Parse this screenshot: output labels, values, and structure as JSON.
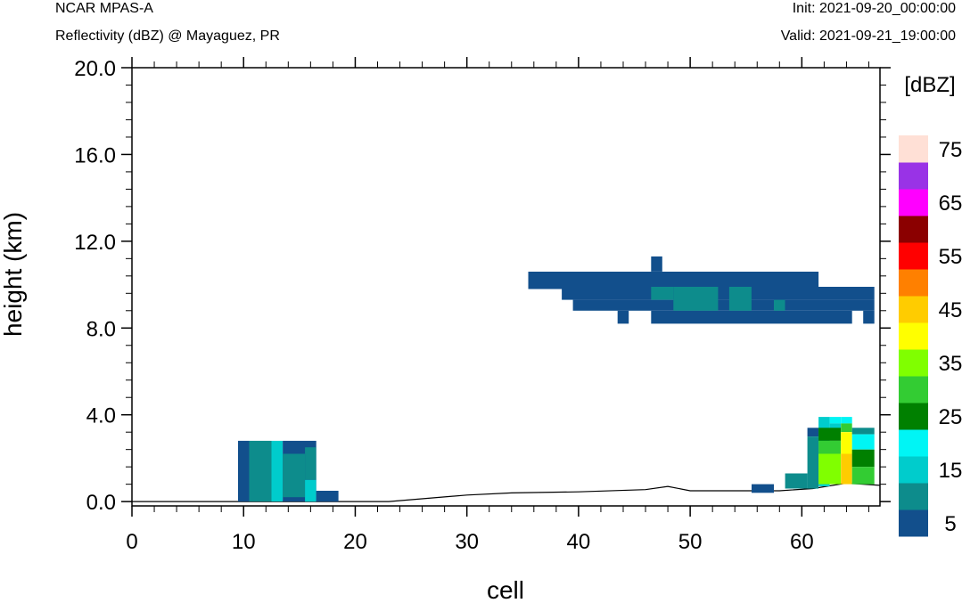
{
  "header": {
    "left_title": "NCAR MPAS-A",
    "left_subtitle": "Reflectivity (dBZ) @ Mayaguez, PR",
    "init": "Init: 2021-09-20_00:00:00",
    "valid": "Valid: 2021-09-21_19:00:00"
  },
  "chart_data": {
    "type": "heatmap",
    "title": "Reflectivity (dBZ) @ Mayaguez, PR",
    "xlabel": "cell",
    "ylabel": "height (km)",
    "xlim": [
      0,
      67
    ],
    "ylim": [
      -0.2,
      20.0
    ],
    "x_ticks": [
      0,
      10,
      20,
      30,
      40,
      50,
      60
    ],
    "x_tick_labels": [
      "0",
      "10",
      "20",
      "30",
      "40",
      "50",
      "60"
    ],
    "y_ticks": [
      0,
      4,
      8,
      12,
      16,
      20
    ],
    "y_tick_labels": [
      "0.0",
      "4.0",
      "8.0",
      "12.0",
      "16.0",
      "20.0"
    ],
    "colorbar": {
      "label": "[dBZ]",
      "levels": [
        5,
        10,
        15,
        20,
        25,
        30,
        35,
        40,
        45,
        50,
        55,
        60,
        65,
        70,
        75
      ],
      "tick_labels": [
        "5",
        "15",
        "25",
        "35",
        "45",
        "55",
        "65",
        "75"
      ],
      "colors": [
        "#124f8c",
        "#0d8c8c",
        "#00cccc",
        "#00f5f5",
        "#008000",
        "#33cc33",
        "#80ff00",
        "#ffff00",
        "#ffcc00",
        "#ff8000",
        "#ff0000",
        "#8b0000",
        "#ff00ff",
        "#9933e6",
        "#ffe0d6"
      ]
    },
    "terrain": [
      [
        0,
        0.0
      ],
      [
        23,
        0.0
      ],
      [
        30,
        0.3
      ],
      [
        34,
        0.4
      ],
      [
        40,
        0.45
      ],
      [
        46,
        0.55
      ],
      [
        48,
        0.7
      ],
      [
        50,
        0.5
      ],
      [
        55,
        0.5
      ],
      [
        58,
        0.5
      ],
      [
        61,
        0.6
      ],
      [
        64,
        0.85
      ],
      [
        67,
        0.75
      ]
    ],
    "cells": [
      {
        "x0": 9.5,
        "x1": 10.5,
        "y0": 0.0,
        "y1": 2.8,
        "dbz": 5
      },
      {
        "x0": 10.5,
        "x1": 12.5,
        "y0": 0.0,
        "y1": 2.8,
        "dbz": 10
      },
      {
        "x0": 12.5,
        "x1": 13.5,
        "y0": 0.0,
        "y1": 2.8,
        "dbz": 15
      },
      {
        "x0": 13.5,
        "x1": 16.5,
        "y0": 0.0,
        "y1": 2.8,
        "dbz": 5
      },
      {
        "x0": 13.5,
        "x1": 15.5,
        "y0": 0.2,
        "y1": 2.2,
        "dbz": 10
      },
      {
        "x0": 15.5,
        "x1": 16.5,
        "y0": 1.0,
        "y1": 2.5,
        "dbz": 10
      },
      {
        "x0": 15.5,
        "x1": 16.5,
        "y0": 0.0,
        "y1": 1.0,
        "dbz": 15
      },
      {
        "x0": 16.5,
        "x1": 18.5,
        "y0": 0.0,
        "y1": 0.5,
        "dbz": 5
      },
      {
        "x0": 35.5,
        "x1": 61.5,
        "y0": 9.8,
        "y1": 10.6,
        "dbz": 5
      },
      {
        "x0": 46.5,
        "x1": 47.5,
        "y0": 10.6,
        "y1": 11.3,
        "dbz": 5
      },
      {
        "x0": 38.5,
        "x1": 66.5,
        "y0": 9.3,
        "y1": 9.9,
        "dbz": 5
      },
      {
        "x0": 39.5,
        "x1": 66.5,
        "y0": 8.8,
        "y1": 9.3,
        "dbz": 5
      },
      {
        "x0": 43.5,
        "x1": 44.5,
        "y0": 8.2,
        "y1": 8.8,
        "dbz": 5
      },
      {
        "x0": 46.5,
        "x1": 64.5,
        "y0": 8.2,
        "y1": 8.8,
        "dbz": 5
      },
      {
        "x0": 65.5,
        "x1": 66.5,
        "y0": 8.2,
        "y1": 8.8,
        "dbz": 5
      },
      {
        "x0": 46.5,
        "x1": 48.5,
        "y0": 9.3,
        "y1": 9.9,
        "dbz": 10
      },
      {
        "x0": 48.5,
        "x1": 52.5,
        "y0": 8.8,
        "y1": 9.9,
        "dbz": 10
      },
      {
        "x0": 53.5,
        "x1": 55.5,
        "y0": 8.8,
        "y1": 9.9,
        "dbz": 10
      },
      {
        "x0": 57.5,
        "x1": 58.5,
        "y0": 8.8,
        "y1": 9.3,
        "dbz": 10
      },
      {
        "x0": 55.5,
        "x1": 57.5,
        "y0": 0.4,
        "y1": 0.8,
        "dbz": 5
      },
      {
        "x0": 58.5,
        "x1": 60.5,
        "y0": 0.6,
        "y1": 1.3,
        "dbz": 10
      },
      {
        "x0": 60.5,
        "x1": 61.5,
        "y0": 3.0,
        "y1": 3.4,
        "dbz": 5
      },
      {
        "x0": 60.5,
        "x1": 61.5,
        "y0": 0.6,
        "y1": 3.0,
        "dbz": 10
      },
      {
        "x0": 61.5,
        "x1": 62.5,
        "y0": 0.7,
        "y1": 3.9,
        "dbz": 15
      },
      {
        "x0": 62.5,
        "x1": 63.5,
        "y0": 3.6,
        "y1": 3.9,
        "dbz": 20
      },
      {
        "x0": 62.5,
        "x1": 63.5,
        "y0": 3.2,
        "y1": 3.6,
        "dbz": 15
      },
      {
        "x0": 61.5,
        "x1": 63.5,
        "y0": 2.8,
        "y1": 3.4,
        "dbz": 25
      },
      {
        "x0": 61.5,
        "x1": 63.5,
        "y0": 2.2,
        "y1": 2.8,
        "dbz": 30
      },
      {
        "x0": 61.5,
        "x1": 63.5,
        "y0": 0.8,
        "y1": 2.2,
        "dbz": 35
      },
      {
        "x0": 63.5,
        "x1": 64.5,
        "y0": 3.6,
        "y1": 3.9,
        "dbz": 20
      },
      {
        "x0": 63.5,
        "x1": 64.5,
        "y0": 3.2,
        "y1": 3.6,
        "dbz": 30
      },
      {
        "x0": 63.5,
        "x1": 64.5,
        "y0": 2.2,
        "y1": 3.2,
        "dbz": 40
      },
      {
        "x0": 63.5,
        "x1": 64.5,
        "y0": 0.8,
        "y1": 2.2,
        "dbz": 45
      },
      {
        "x0": 64.5,
        "x1": 66.5,
        "y0": 3.1,
        "y1": 3.4,
        "dbz": 10
      },
      {
        "x0": 64.5,
        "x1": 66.5,
        "y0": 2.4,
        "y1": 3.1,
        "dbz": 20
      },
      {
        "x0": 64.5,
        "x1": 66.5,
        "y0": 1.6,
        "y1": 2.4,
        "dbz": 25
      },
      {
        "x0": 64.5,
        "x1": 66.5,
        "y0": 0.8,
        "y1": 1.6,
        "dbz": 30
      }
    ]
  }
}
